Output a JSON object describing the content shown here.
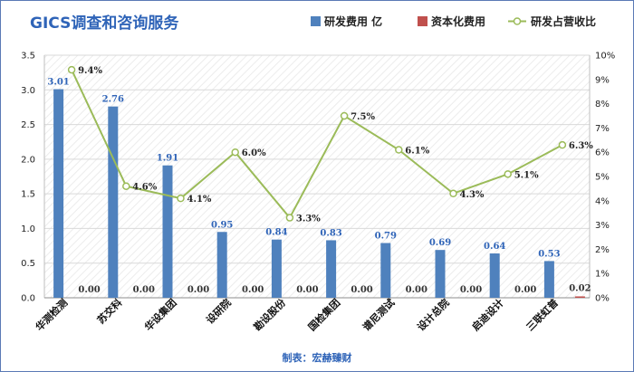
{
  "chart_data": {
    "type": "bar",
    "title": "GICS调查和咨询服务",
    "source_note": "制表：宏赫臻财",
    "categories": [
      "华测检测",
      "苏交科",
      "华设集团",
      "设研院",
      "勘设股份",
      "国检集团",
      "谱尼测试",
      "设计总院",
      "启迪设计",
      "三联虹普"
    ],
    "series": [
      {
        "name": "研发费用 亿",
        "type": "bar",
        "axis": "left",
        "color": "#4f81bd",
        "values": [
          3.01,
          2.76,
          1.91,
          0.95,
          0.84,
          0.83,
          0.79,
          0.69,
          0.64,
          0.53
        ],
        "labels": [
          "3.01",
          "2.76",
          "1.91",
          "0.95",
          "0.84",
          "0.83",
          "0.79",
          "0.69",
          "0.64",
          "0.53"
        ]
      },
      {
        "name": "资本化费用",
        "type": "bar",
        "axis": "left",
        "color": "#c0504d",
        "values": [
          0.0,
          0.0,
          0.0,
          0.0,
          0.0,
          0.0,
          0.0,
          0.0,
          0.0,
          0.02
        ],
        "labels": [
          "0.00",
          "0.00",
          "0.00",
          "0.00",
          "0.00",
          "0.00",
          "0.00",
          "0.00",
          "0.00",
          "0.02"
        ]
      },
      {
        "name": "研发占营收比",
        "type": "line",
        "axis": "right",
        "color": "#9bbb59",
        "values": [
          9.4,
          4.6,
          4.1,
          6.0,
          3.3,
          7.5,
          6.1,
          4.3,
          5.1,
          6.3
        ],
        "labels": [
          "9.4%",
          "4.6%",
          "4.1%",
          "6.0%",
          "3.3%",
          "7.5%",
          "6.1%",
          "4.3%",
          "5.1%",
          "6.3%"
        ]
      }
    ],
    "y_left": {
      "min": 0,
      "max": 3.5,
      "ticks": [
        "0.0",
        "0.5",
        "1.0",
        "1.5",
        "2.0",
        "2.5",
        "3.0",
        "3.5"
      ]
    },
    "y_right": {
      "min": 0,
      "max": 10,
      "ticks": [
        "0%",
        "1%",
        "2%",
        "3%",
        "4%",
        "5%",
        "6%",
        "7%",
        "8%",
        "9%",
        "10%"
      ]
    },
    "legend_position": "top-right",
    "grid": true
  }
}
